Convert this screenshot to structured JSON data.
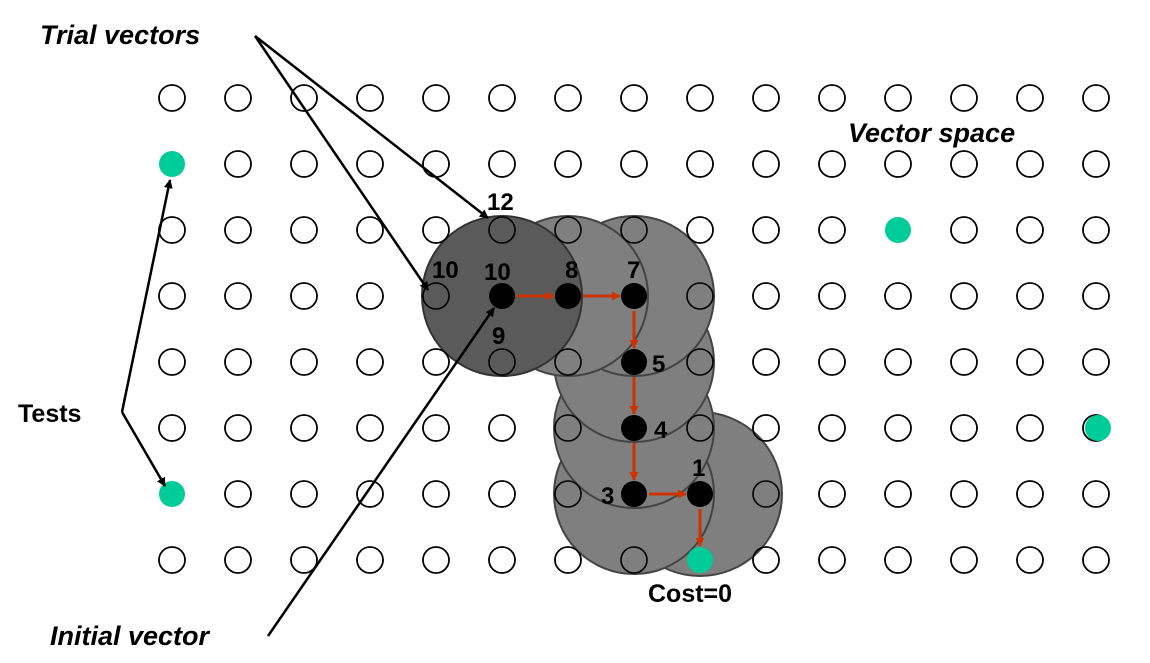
{
  "labels": {
    "trial_vectors": "Trial vectors",
    "vector_space": "Vector space",
    "tests": "Tests",
    "initial_vector": "Initial vector",
    "cost": "Cost=0"
  },
  "numbers": {
    "n12": "12",
    "n10_left": "10",
    "n10_center": "10",
    "n8": "8",
    "n7": "7",
    "n9": "9",
    "n5": "5",
    "n4": "4",
    "n3": "3",
    "n1": "1"
  },
  "colors": {
    "test_point": "#00cc99",
    "search_point": "#000000",
    "path_arrow": "#cc3300",
    "neighborhood_fill": "#7f7f7f",
    "initial_neighborhood_fill": "#5a5a5a",
    "grid_point_stroke": "#000000"
  }
}
